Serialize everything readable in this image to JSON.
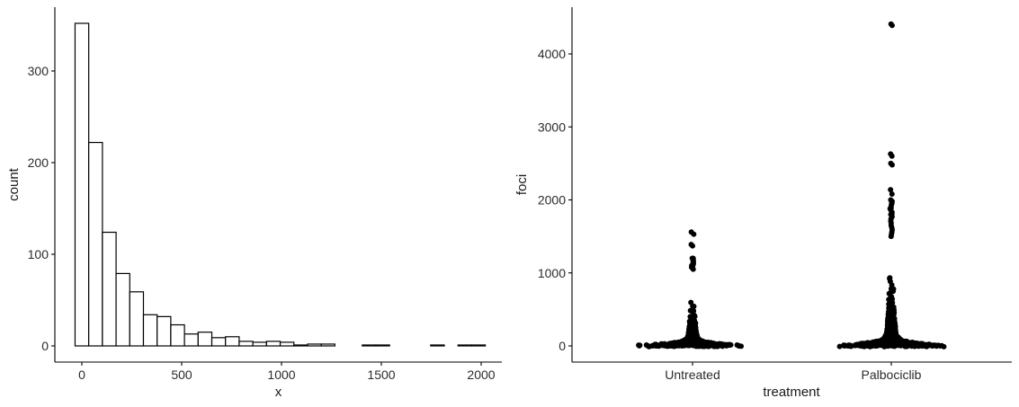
{
  "chart_data": [
    {
      "type": "bar",
      "subtype": "histogram",
      "xlabel": "x",
      "ylabel": "count",
      "xlim": [
        -50,
        2050
      ],
      "ylim": [
        -18,
        352
      ],
      "x_ticks": [
        0,
        500,
        1000,
        1500,
        2000
      ],
      "x_tick_labels": [
        "0",
        "500",
        "1000",
        "1500",
        "2000"
      ],
      "y_ticks": [
        0,
        100,
        200,
        300
      ],
      "y_tick_labels": [
        "0",
        "100",
        "200",
        "300"
      ],
      "bin_width": 68.5,
      "bin_edges_start": -34,
      "values": [
        352,
        222,
        124,
        79,
        59,
        34,
        32,
        23,
        13,
        15,
        9,
        10,
        5,
        4,
        5,
        4,
        1,
        2,
        2,
        0,
        0,
        1,
        1,
        0,
        0,
        0,
        1,
        0,
        1,
        1
      ],
      "bar_fill": "#ffffff",
      "bar_stroke": "#000000",
      "grid": false
    },
    {
      "type": "scatter",
      "subtype": "beeswarm",
      "xlabel": "treatment",
      "ylabel": "foci",
      "categories": [
        "Untreated",
        "Palbociclib"
      ],
      "ylim": [
        -220,
        4620
      ],
      "y_ticks": [
        0,
        1000,
        2000,
        3000,
        4000
      ],
      "y_tick_labels": [
        "0",
        "1000",
        "2000",
        "3000",
        "4000"
      ],
      "series": [
        {
          "category": "Untreated",
          "max_value": 1560,
          "outliers": [
            1560,
            1530,
            1390,
            1370,
            1200,
            1150,
            1100
          ]
        },
        {
          "category": "Palbociclib",
          "max_value": 4410,
          "outliers": [
            4410,
            4390,
            2630,
            2600,
            2500,
            2480,
            2140,
            2080,
            2000,
            1950,
            1880,
            1800
          ]
        }
      ],
      "point_color": "#000000",
      "grid": false
    }
  ]
}
